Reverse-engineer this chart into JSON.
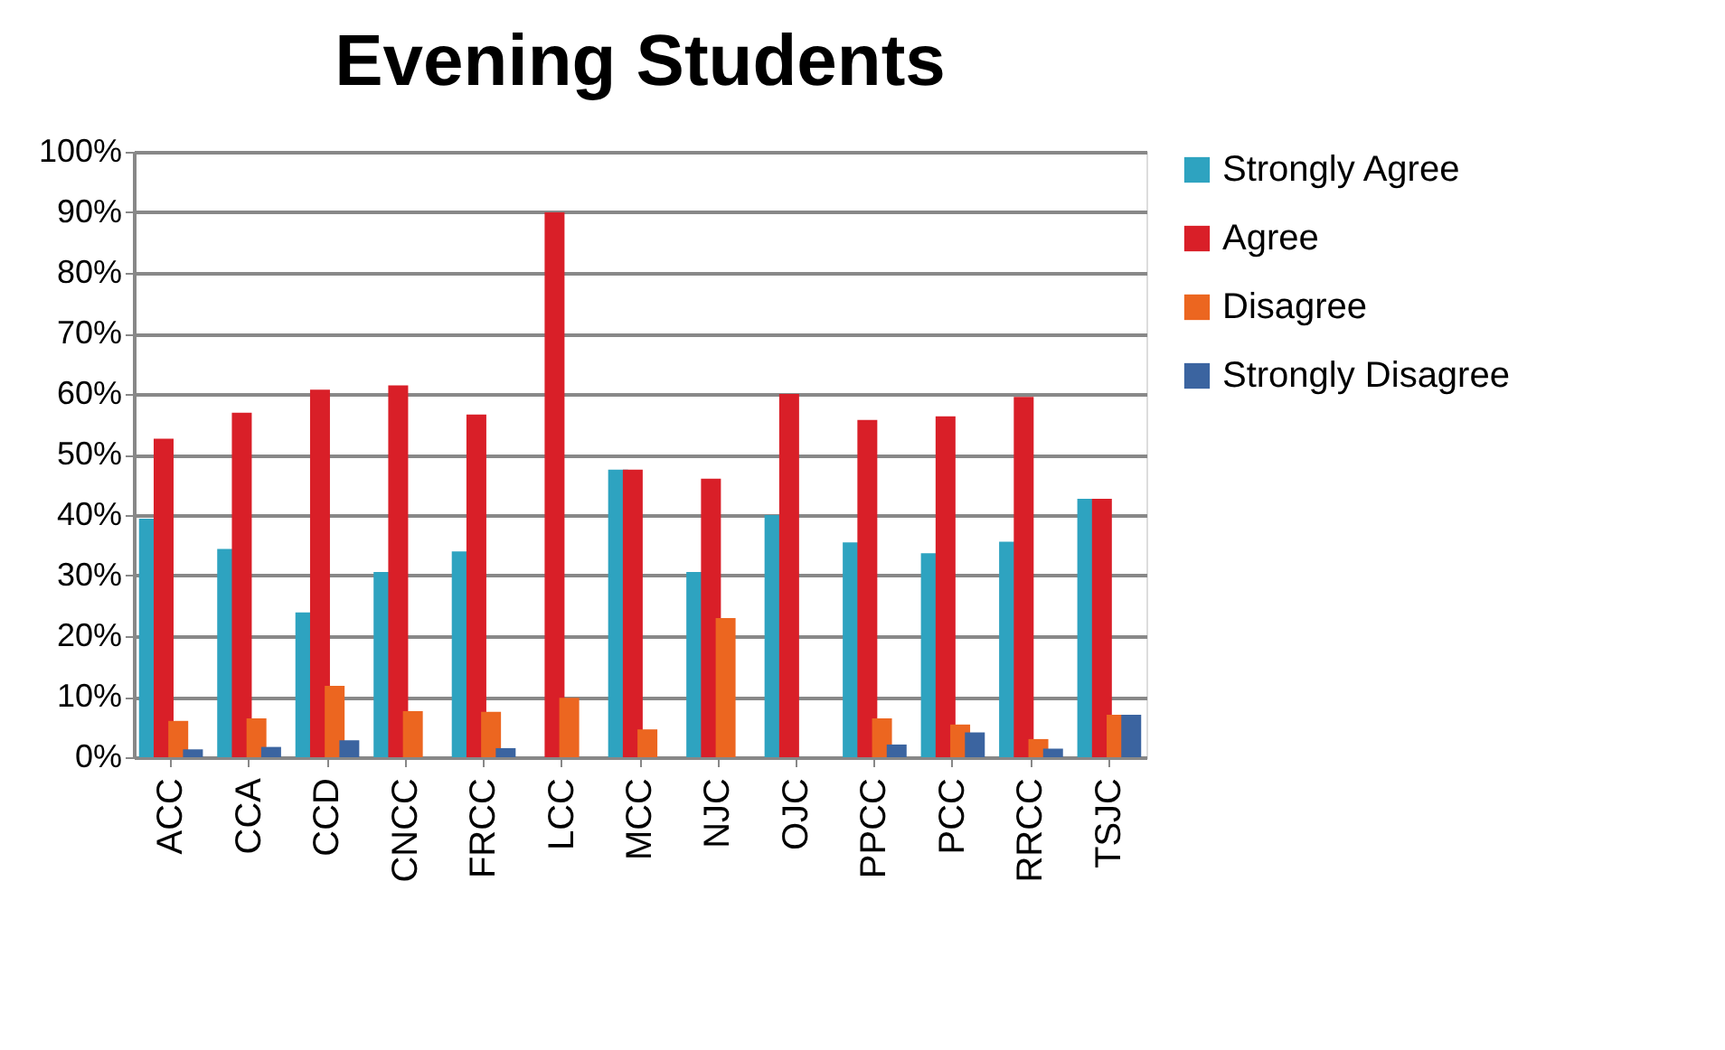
{
  "chart_data": {
    "type": "bar",
    "title": "Evening Students",
    "categories": [
      "ACC",
      "CCA",
      "CCD",
      "CNCC",
      "FRCC",
      "LCC",
      "MCC",
      "NJC",
      "OJC",
      "PPCC",
      "PCC",
      "RRCC",
      "TSJC"
    ],
    "series": [
      {
        "name": "Strongly Agree",
        "color": "#2ea3c0",
        "values": [
          39.4,
          34.4,
          23.9,
          30.6,
          34.0,
          0,
          47.5,
          30.6,
          40.0,
          35.5,
          33.7,
          35.6,
          42.7
        ]
      },
      {
        "name": "Agree",
        "color": "#d91f28",
        "values": [
          52.6,
          56.9,
          60.7,
          61.4,
          56.6,
          90.0,
          47.5,
          46.0,
          60.0,
          55.7,
          56.3,
          59.5,
          42.7
        ]
      },
      {
        "name": "Disagree",
        "color": "#ec6620",
        "values": [
          6.0,
          6.4,
          11.8,
          7.6,
          7.5,
          9.8,
          4.6,
          23.0,
          0,
          6.4,
          5.4,
          3.0,
          7.0
        ]
      },
      {
        "name": "Strongly Disagree",
        "color": "#3b64a0",
        "values": [
          1.3,
          1.7,
          2.8,
          0,
          1.5,
          0,
          0,
          0,
          0,
          2.1,
          4.1,
          1.4,
          7.0
        ]
      }
    ],
    "ylim": [
      0,
      100
    ],
    "yticks": [
      {
        "value": 0,
        "label": "0%"
      },
      {
        "value": 10,
        "label": "10%"
      },
      {
        "value": 20,
        "label": "20%"
      },
      {
        "value": 30,
        "label": "30%"
      },
      {
        "value": 40,
        "label": "40%"
      },
      {
        "value": 50,
        "label": "50%"
      },
      {
        "value": 60,
        "label": "60%"
      },
      {
        "value": 70,
        "label": "70%"
      },
      {
        "value": 80,
        "label": "80%"
      },
      {
        "value": 90,
        "label": "90%"
      },
      {
        "value": 100,
        "label": "100%"
      }
    ],
    "grid": "y",
    "legend": "right"
  }
}
